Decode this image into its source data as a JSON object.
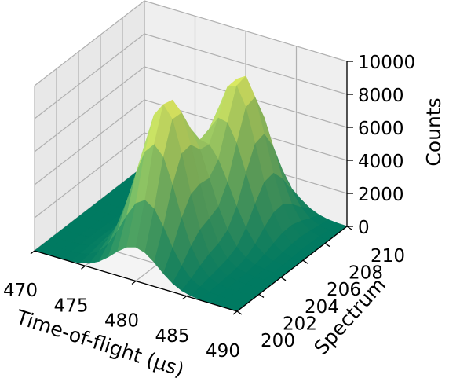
{
  "chart_data": {
    "type": "surface3d",
    "colormap": "summer",
    "colors": {
      "pane_left": "#e8e8e8",
      "pane_right": "#efefef",
      "pane_floor": "#f4f4f4",
      "grid": "#b0b0b0",
      "surface_low": "#008066",
      "surface_high": "#ffff66"
    },
    "xlabel": "Time-of-flight (μs)",
    "ylabel": "Spectrum",
    "zlabel": "Counts",
    "xlim": [
      470,
      490
    ],
    "ylim": [
      200,
      210
    ],
    "zlim": [
      0,
      10000
    ],
    "x_ticks": [
      "470",
      "475",
      "480",
      "485",
      "490"
    ],
    "y_ticks": [
      "200",
      "202",
      "204",
      "206",
      "208",
      "210"
    ],
    "z_ticks": [
      "0",
      "2000",
      "4000",
      "6000",
      "8000",
      "10000"
    ],
    "peaks": [
      {
        "tof_center": 480.0,
        "spectrum_center": 202.8,
        "peak_counts": 9500,
        "tof_width": 2.2,
        "spectrum_width": 1.6
      },
      {
        "tof_center": 482.5,
        "spectrum_center": 207.2,
        "peak_counts": 9200,
        "tof_width": 2.2,
        "spectrum_width": 1.6
      }
    ],
    "grid_on": true
  }
}
